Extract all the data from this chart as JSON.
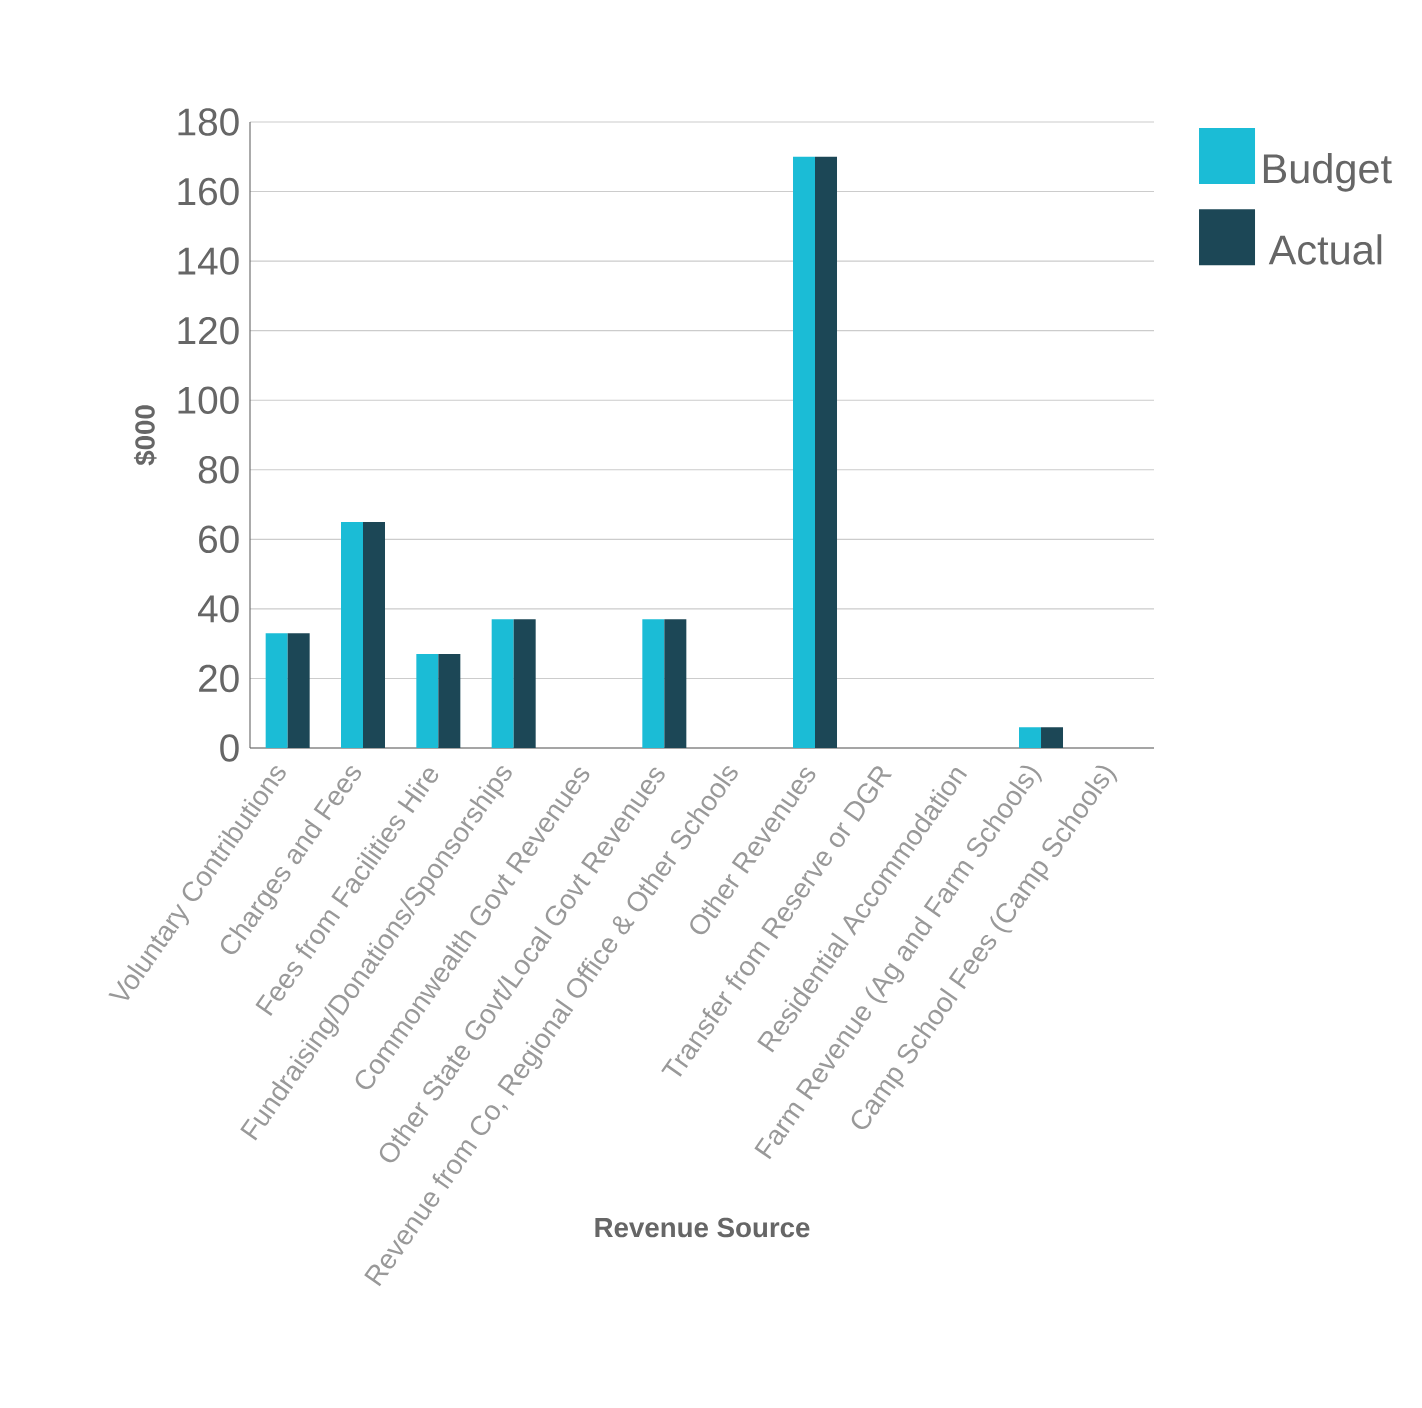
{
  "chart_data": {
    "type": "bar",
    "xlabel": "Revenue Source",
    "ylabel": "$000",
    "categories": [
      "Voluntary Contributions",
      "Charges and Fees",
      "Fees from Facilities Hire",
      "Fundraising/Donations/Sponsorships",
      "Commonwealth Govt Revenues",
      "Other State Govt/Local Govt Revenues",
      "Revenue from Co, Regional Office & Other Schools",
      "Other Revenues",
      "Transfer from Reserve or DGR",
      "Residential Accommodation",
      "Farm Revenue (Ag and Farm Schools)",
      "Camp School Fees (Camp Schools)"
    ],
    "series": [
      {
        "name": "Budget",
        "color": "#1bbcd6",
        "values": [
          33,
          65,
          27,
          37,
          0,
          37,
          0,
          170,
          0,
          0,
          6,
          0
        ]
      },
      {
        "name": "Actual",
        "color": "#1c4756",
        "values": [
          33,
          65,
          27,
          37,
          0,
          37,
          0,
          170,
          0,
          0,
          6,
          0
        ]
      }
    ],
    "ylim": [
      0,
      180
    ],
    "yticks": [
      0,
      20,
      40,
      60,
      80,
      100,
      120,
      140,
      160,
      180
    ],
    "grid": "y",
    "legend": "top right"
  }
}
